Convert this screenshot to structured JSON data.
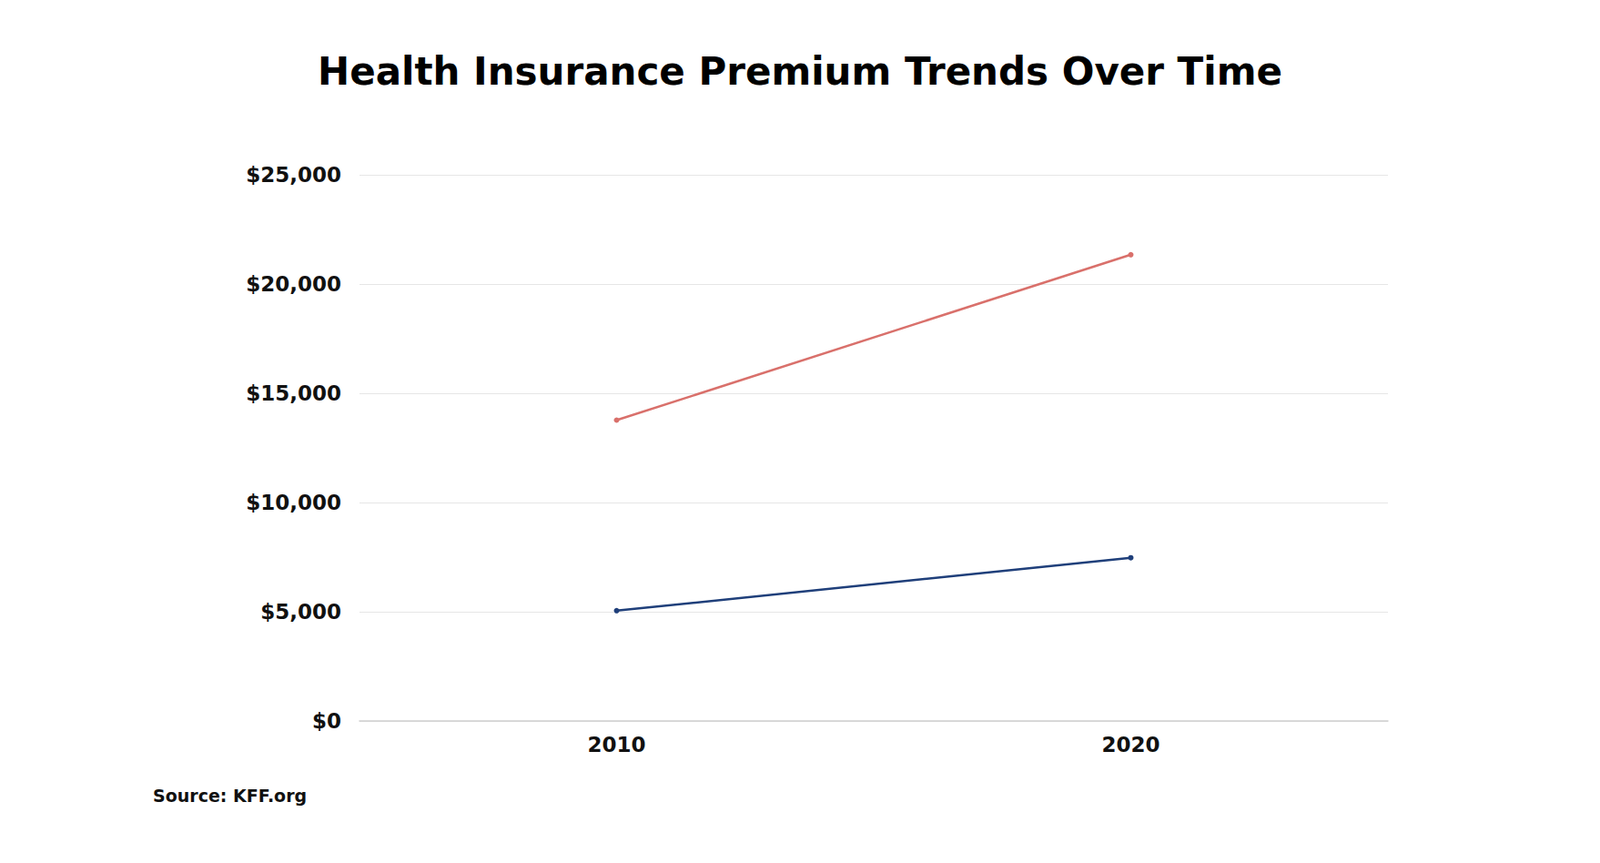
{
  "chart_data": {
    "type": "line",
    "title": "Health Insurance Premium Trends Over Time",
    "annotation": "Source: KFF.org",
    "categories": [
      "2010",
      "2020"
    ],
    "series": [
      {
        "color": "#d9706b",
        "values": [
          13770,
          21342
        ]
      },
      {
        "color": "#1f3f7a",
        "values": [
          5049,
          7470
        ]
      }
    ],
    "marker": "circle",
    "ylim": [
      0,
      25000
    ],
    "yticks": [
      {
        "value": 0,
        "label": "$0"
      },
      {
        "value": 5000,
        "label": "$5,000"
      },
      {
        "value": 10000,
        "label": "$10,000"
      },
      {
        "value": 15000,
        "label": "$15,000"
      },
      {
        "value": 20000,
        "label": "$20,000"
      },
      {
        "value": 25000,
        "label": "$25,000"
      }
    ],
    "grid": true,
    "legend": null
  }
}
